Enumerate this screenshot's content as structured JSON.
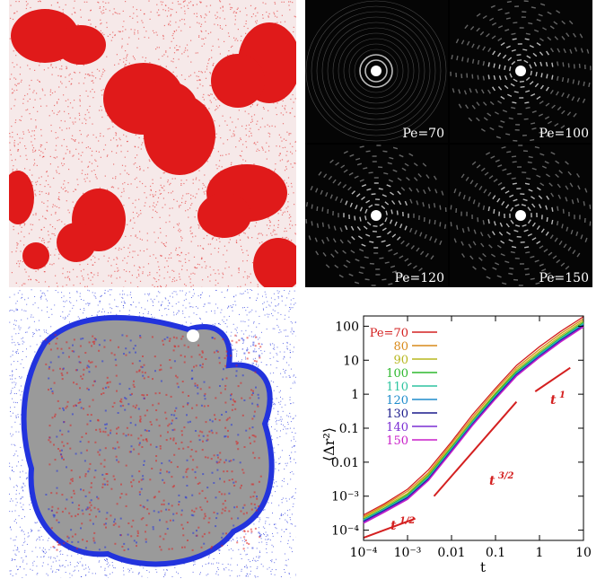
{
  "panels": {
    "fft_labels": [
      "Pe=70",
      "Pe=100",
      "Pe=120",
      "Pe=150"
    ]
  },
  "colors": {
    "snapshot_red": "#e01a1a",
    "cluster_blue": "#2233dd",
    "cluster_gray": "#9a9a9a",
    "cluster_red": "#dd2222"
  },
  "chart_data": {
    "type": "line",
    "xscale": "log",
    "yscale": "log",
    "xlabel": "t",
    "ylabel": "⟨Δr²⟩",
    "xlim": [
      0.0001,
      10
    ],
    "ylim": [
      5e-05,
      200
    ],
    "x_ticks": [
      "10⁻⁴",
      "10⁻³",
      "0.01",
      "0.1",
      "1",
      "10"
    ],
    "y_ticks": [
      "10⁻⁴",
      "10⁻³",
      "0.01",
      "0.1",
      "1",
      "10",
      "100"
    ],
    "legend_position": "top-left",
    "x": [
      0.0001,
      0.0003,
      0.001,
      0.003,
      0.01,
      0.03,
      0.1,
      0.3,
      1,
      3,
      10
    ],
    "series": [
      {
        "name": "Pe=70",
        "color": "#d42020",
        "values": [
          0.00028,
          0.0006,
          0.0016,
          0.006,
          0.04,
          0.25,
          1.5,
          7,
          25,
          70,
          190
        ]
      },
      {
        "name": "80",
        "color": "#d98a1a",
        "values": [
          0.00025,
          0.00055,
          0.0014,
          0.005,
          0.035,
          0.21,
          1.3,
          6,
          21,
          60,
          165
        ]
      },
      {
        "name": "90",
        "color": "#b7b71e",
        "values": [
          0.00023,
          0.0005,
          0.0012,
          0.0045,
          0.03,
          0.18,
          1.1,
          5.2,
          18,
          52,
          145
        ]
      },
      {
        "name": "100",
        "color": "#2eb82e",
        "values": [
          0.00021,
          0.00045,
          0.0011,
          0.004,
          0.027,
          0.16,
          1.0,
          4.6,
          16,
          46,
          130
        ]
      },
      {
        "name": "110",
        "color": "#2ec4a0",
        "values": [
          0.0002,
          0.00042,
          0.001,
          0.0036,
          0.025,
          0.15,
          0.9,
          4.2,
          15,
          43,
          120
        ]
      },
      {
        "name": "120",
        "color": "#1e8ccc",
        "values": [
          0.00019,
          0.0004,
          0.00095,
          0.0034,
          0.023,
          0.14,
          0.85,
          4.0,
          14,
          40,
          112
        ]
      },
      {
        "name": "130",
        "color": "#1a1a8c",
        "values": [
          0.00018,
          0.00038,
          0.0009,
          0.0032,
          0.022,
          0.13,
          0.8,
          3.8,
          13,
          38,
          105
        ]
      },
      {
        "name": "140",
        "color": "#7a2ed4",
        "values": [
          0.00017,
          0.00036,
          0.00085,
          0.003,
          0.021,
          0.125,
          0.75,
          3.6,
          12.5,
          36,
          100
        ]
      },
      {
        "name": "150",
        "color": "#c81ec8",
        "values": [
          0.00016,
          0.00034,
          0.0008,
          0.0029,
          0.02,
          0.12,
          0.72,
          3.4,
          12,
          34,
          95
        ]
      }
    ],
    "guides": [
      {
        "label": "t",
        "exponent": "1/2"
      },
      {
        "label": "t",
        "exponent": "3/2"
      },
      {
        "label": "t",
        "exponent": "1"
      }
    ]
  }
}
